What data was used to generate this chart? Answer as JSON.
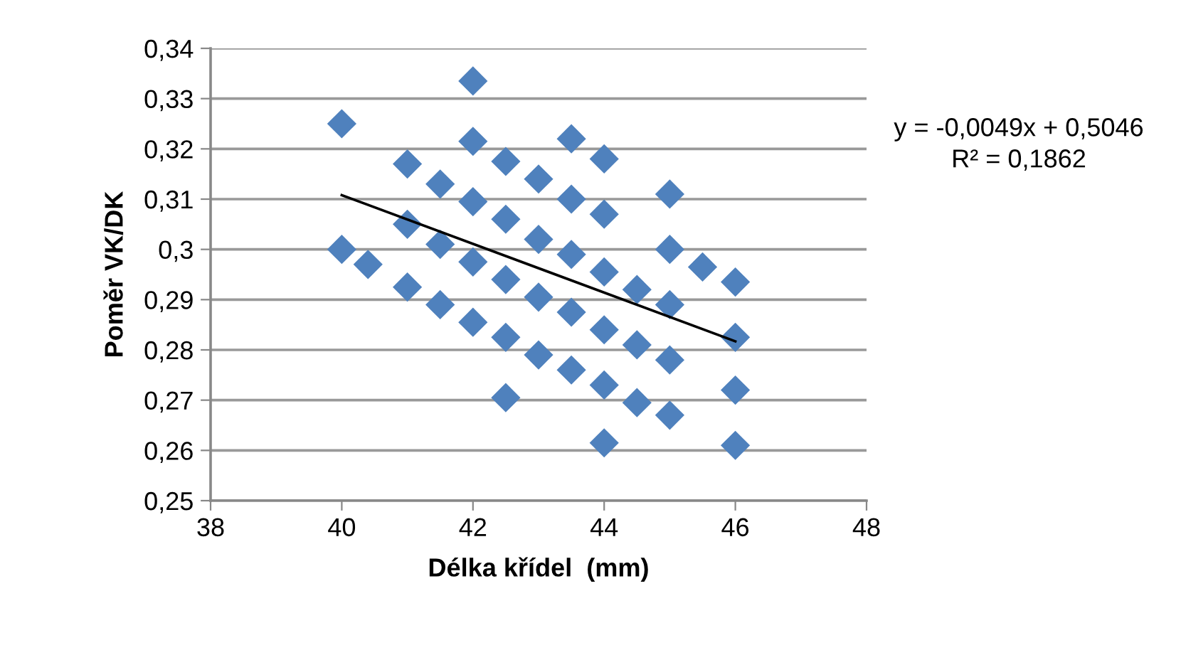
{
  "chart_data": {
    "type": "scatter",
    "xlabel": "Délka křídel  (mm)",
    "ylabel": "Poměr VK/DK",
    "xlim": [
      38,
      48
    ],
    "xticks": [
      38,
      40,
      42,
      44,
      46,
      48
    ],
    "ylim": [
      0.25,
      0.34
    ],
    "yticks": [
      {
        "value": 0.25,
        "label": "0,25"
      },
      {
        "value": 0.26,
        "label": "0,26"
      },
      {
        "value": 0.27,
        "label": "0,27"
      },
      {
        "value": 0.28,
        "label": "0,28"
      },
      {
        "value": 0.29,
        "label": "0,29"
      },
      {
        "value": 0.3,
        "label": "0,3"
      },
      {
        "value": 0.31,
        "label": "0,31"
      },
      {
        "value": 0.32,
        "label": "0,32"
      },
      {
        "value": 0.33,
        "label": "0,33"
      },
      {
        "value": 0.34,
        "label": "0,34"
      }
    ],
    "grid": "y",
    "legend": false,
    "series": [
      {
        "marker": "diamond",
        "color": "#4f81bd",
        "x": [
          40,
          40,
          40.4,
          41,
          41,
          41,
          41.5,
          41.5,
          41.5,
          42,
          42,
          42,
          42,
          42,
          42.5,
          42.5,
          42.5,
          42.5,
          42.5,
          43,
          43,
          43,
          43,
          43.5,
          43.5,
          43.5,
          43.5,
          43.5,
          44,
          44,
          44,
          44,
          44,
          44,
          44.5,
          44.5,
          44.5,
          45,
          45,
          45,
          45,
          45,
          45.5,
          46,
          46,
          46,
          46
        ],
        "values": [
          0.325,
          0.3,
          0.297,
          0.317,
          0.305,
          0.2925,
          0.313,
          0.301,
          0.289,
          0.3335,
          0.3215,
          0.3095,
          0.2975,
          0.2855,
          0.3175,
          0.306,
          0.294,
          0.2825,
          0.2705,
          0.314,
          0.302,
          0.2905,
          0.279,
          0.322,
          0.31,
          0.299,
          0.2875,
          0.276,
          0.318,
          0.307,
          0.2955,
          0.284,
          0.273,
          0.2615,
          0.292,
          0.281,
          0.2695,
          0.311,
          0.3,
          0.289,
          0.278,
          0.267,
          0.2965,
          0.2935,
          0.2825,
          0.272,
          0.261
        ]
      },
      {
        "type": "line",
        "marker": "none",
        "color": "#000000",
        "x": [
          40,
          46
        ],
        "values": [
          0.3108,
          0.2817
        ]
      }
    ],
    "annotations": [
      "y = -0,0049x + 0,5046",
      "R² = 0,1862"
    ]
  }
}
